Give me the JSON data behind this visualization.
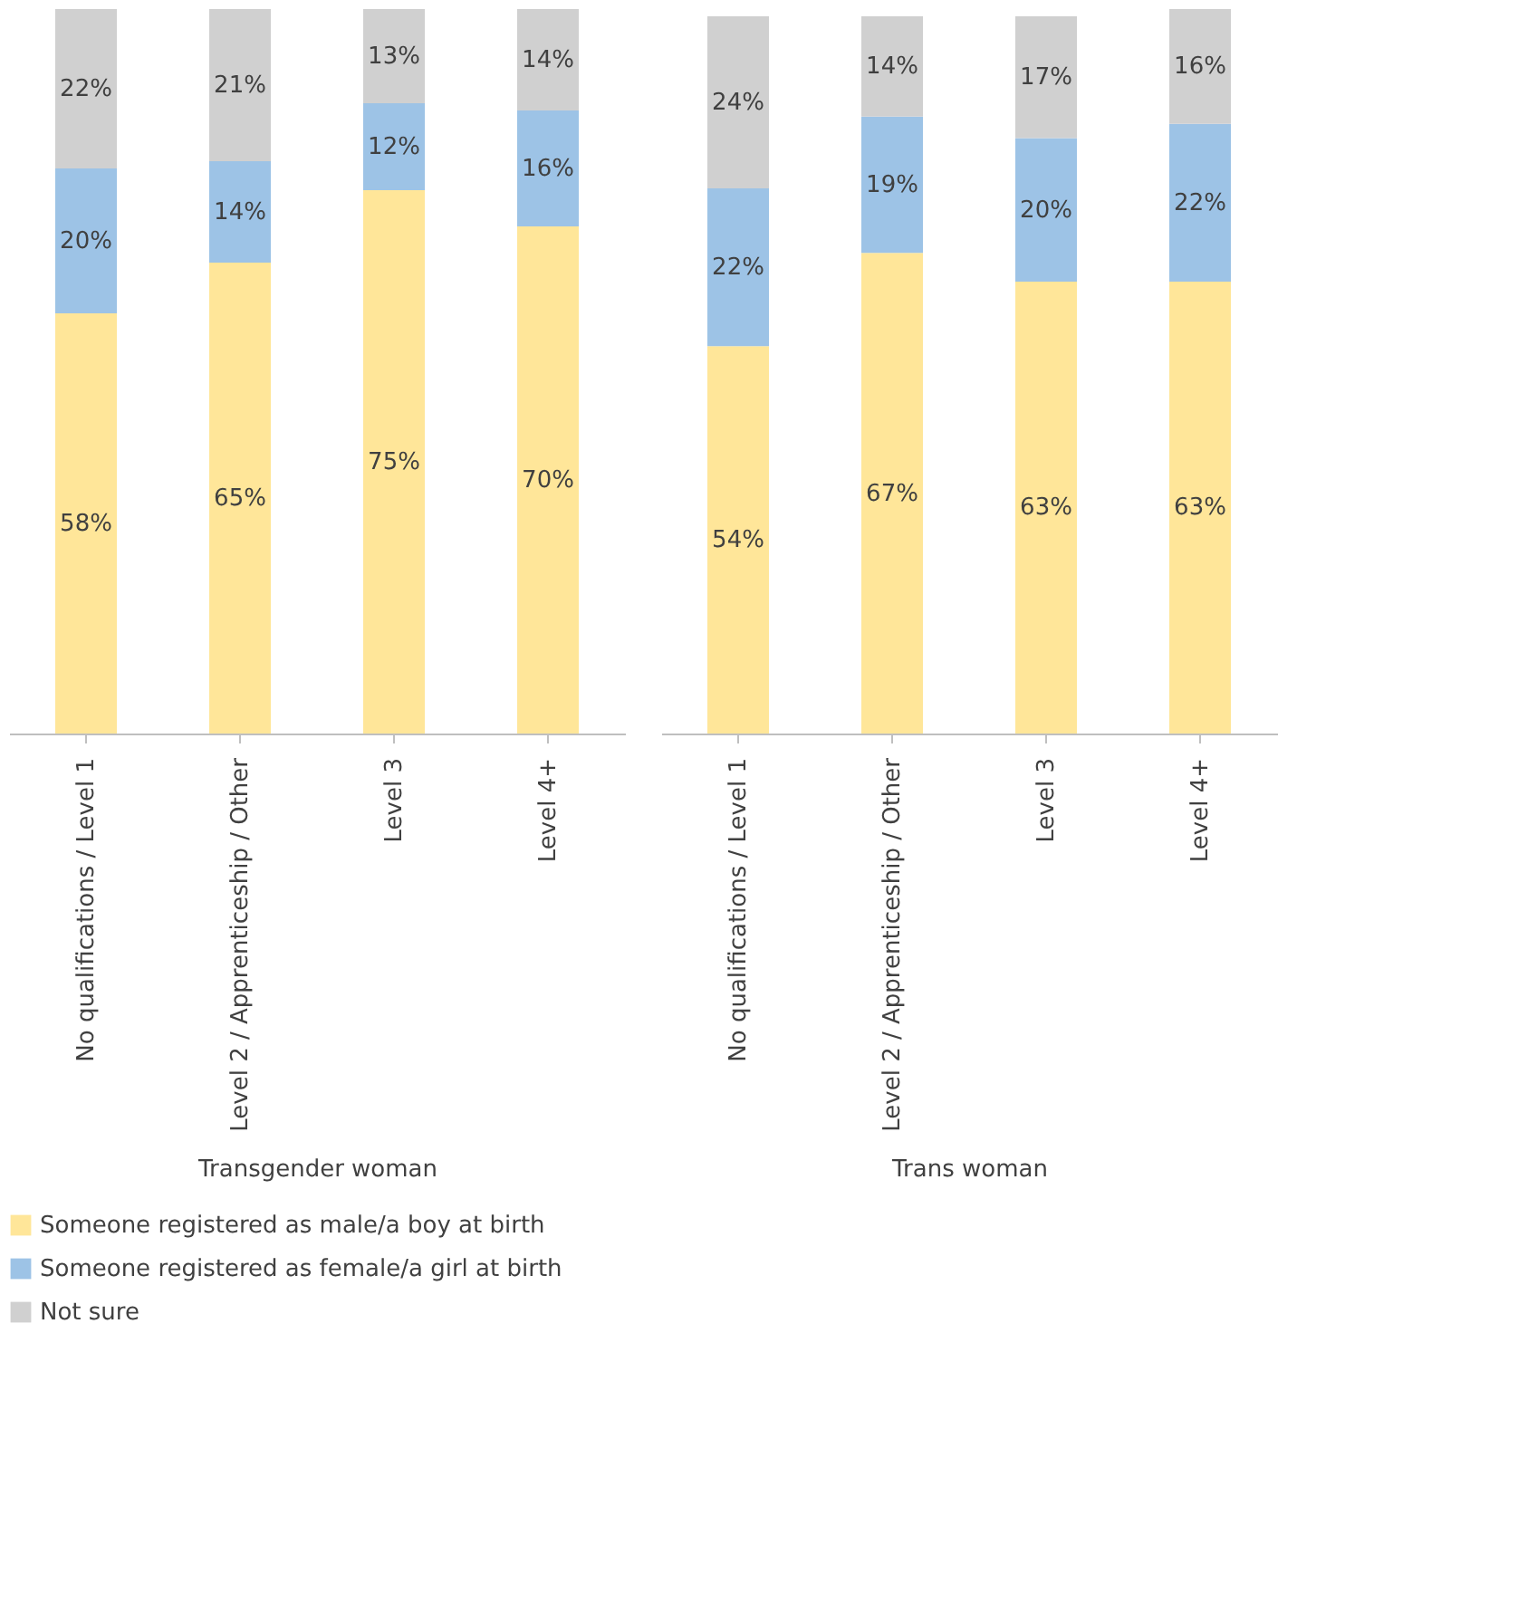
{
  "chart_data": [
    {
      "type": "bar",
      "stacked": true,
      "xlabel": "Transgender woman",
      "categories": [
        "No qualifications / Level 1",
        "Level 2 / Apprenticeship / Other",
        "Level 3",
        "Level 4+"
      ],
      "legend": "bottom",
      "grid": false,
      "tick_labels": "x",
      "series": [
        {
          "name": "Someone registered as male/a boy at birth",
          "color": "#ffe699",
          "values": [
            58,
            65,
            75,
            70
          ],
          "value_labels": [
            "58%",
            "65%",
            "75%",
            "70%"
          ]
        },
        {
          "name": "Someone registered as female/a girl at birth",
          "color": "#9dc3e6",
          "values": [
            20,
            14,
            12,
            16
          ],
          "value_labels": [
            "20%",
            "14%",
            "12%",
            "16%"
          ]
        },
        {
          "name": "Not sure",
          "color": "#d0d0d0",
          "values": [
            22,
            21,
            13,
            14
          ],
          "value_labels": [
            "22%",
            "21%",
            "13%",
            "14%"
          ]
        }
      ]
    },
    {
      "type": "bar",
      "stacked": true,
      "xlabel": "Trans woman",
      "categories": [
        "No qualifications / Level 1",
        "Level 2 / Apprenticeship / Other",
        "Level 3",
        "Level 4+"
      ],
      "legend": "bottom",
      "grid": false,
      "tick_labels": "x",
      "series": [
        {
          "name": "Someone registered as male/a boy at birth",
          "color": "#ffe699",
          "values": [
            54,
            67,
            63,
            63
          ],
          "value_labels": [
            "54%",
            "67%",
            "63%",
            "63%"
          ]
        },
        {
          "name": "Someone registered as female/a girl at birth",
          "color": "#9dc3e6",
          "values": [
            22,
            19,
            20,
            22
          ],
          "value_labels": [
            "22%",
            "19%",
            "20%",
            "22%"
          ]
        },
        {
          "name": "Not sure",
          "color": "#d0d0d0",
          "values": [
            24,
            14,
            17,
            16
          ],
          "value_labels": [
            "24%",
            "14%",
            "17%",
            "16%"
          ]
        }
      ]
    }
  ]
}
